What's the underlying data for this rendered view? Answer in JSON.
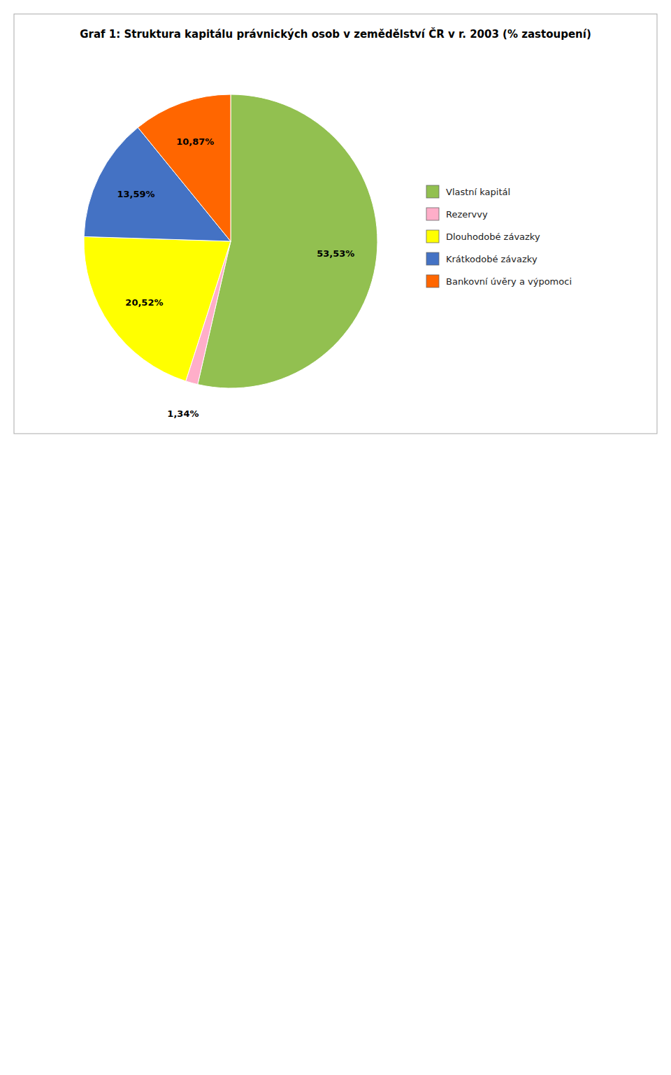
{
  "chart_data": {
    "type": "pie",
    "title": "Graf 1: Struktura kapitálu právnických osob v zemědělství ČR v r. 2003 (% zastoupení)",
    "categories": [
      "Vlastní kapitál",
      "Rezervvy",
      "Dlouhodobé závazky",
      "Krátkodobé závazky",
      "Bankovní úvěry a výpomoci"
    ],
    "values": [
      53.53,
      1.34,
      20.52,
      13.59,
      10.87
    ],
    "value_labels": [
      "53,53%",
      "1,34%",
      "20,52%",
      "13,59%",
      "10,87%"
    ],
    "colors": [
      "#92C050",
      "#FFAEC9",
      "#FFFF00",
      "#4472C4",
      "#FF6600"
    ],
    "data_labels": true,
    "legend": "right"
  }
}
